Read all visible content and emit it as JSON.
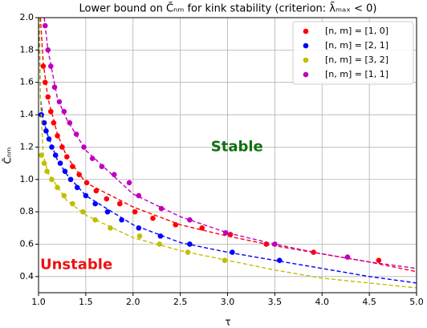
{
  "chart_data": {
    "type": "scatter",
    "title": "Lower bound on C̃ₙₘ for kink stability (criterion: λ̃ₘₐₓ < 0)",
    "xlabel": "τ",
    "ylabel": "C̃ₙₘ",
    "xlim": [
      1.0,
      5.0
    ],
    "ylim": [
      0.3,
      2.0
    ],
    "xticks": [
      {
        "value": 1.0,
        "label": "1.0"
      },
      1.5,
      {
        "value": 2.0,
        "label": "2.0"
      },
      2.5,
      {
        "value": 3.0,
        "label": "3.0"
      },
      3.5,
      {
        "value": 4.0,
        "label": "4.0"
      },
      4.5,
      {
        "value": 5.0,
        "label": "5.0"
      }
    ],
    "yticks": [
      0.4,
      0.6,
      0.8,
      {
        "value": 1.0,
        "label": "1.0"
      },
      1.2,
      1.4,
      1.6,
      1.8,
      {
        "value": 2.0,
        "label": "2.0"
      }
    ],
    "grid": true,
    "legend": "upper right",
    "annotations": [
      {
        "text": "Stable",
        "x": 3.1,
        "y": 1.2,
        "color": "#107010"
      },
      {
        "text": "Unstable",
        "x": 1.4,
        "y": 0.47,
        "color": "#ee1111"
      }
    ],
    "series": [
      {
        "name": "[n, m] = [1, 0]",
        "color": "#ff0000",
        "x": [
          1.05,
          1.07,
          1.1,
          1.13,
          1.16,
          1.2,
          1.25,
          1.3,
          1.36,
          1.43,
          1.51,
          1.61,
          1.72,
          1.86,
          2.02,
          2.21,
          2.45,
          2.73,
          3.03,
          3.41,
          3.91,
          4.6
        ],
        "values": [
          1.7,
          1.6,
          1.51,
          1.42,
          1.35,
          1.27,
          1.2,
          1.14,
          1.08,
          1.03,
          0.98,
          0.93,
          0.88,
          0.85,
          0.8,
          0.76,
          0.72,
          0.7,
          0.66,
          0.6,
          0.55,
          0.5
        ],
        "curve": {
          "x": [
            1.02,
            1.05,
            1.1,
            1.2,
            1.3,
            1.5,
            2.0,
            2.5,
            3.0,
            3.5,
            4.0,
            4.5,
            5.0
          ],
          "values": [
            2.0,
            1.72,
            1.5,
            1.28,
            1.14,
            0.98,
            0.83,
            0.72,
            0.65,
            0.59,
            0.54,
            0.49,
            0.43
          ]
        }
      },
      {
        "name": "[n, m] = [2, 1]",
        "color": "#0000ff",
        "x": [
          1.03,
          1.06,
          1.08,
          1.11,
          1.14,
          1.18,
          1.23,
          1.28,
          1.34,
          1.41,
          1.5,
          1.6,
          1.73,
          1.88,
          2.06,
          2.29,
          2.6,
          3.05,
          3.55
        ],
        "values": [
          1.4,
          1.35,
          1.3,
          1.25,
          1.2,
          1.15,
          1.1,
          1.05,
          1.0,
          0.95,
          0.9,
          0.85,
          0.8,
          0.75,
          0.7,
          0.65,
          0.6,
          0.55,
          0.5
        ],
        "curve": {
          "x": [
            1.005,
            1.02,
            1.05,
            1.1,
            1.2,
            1.3,
            1.5,
            2.0,
            2.5,
            3.0,
            3.5,
            4.0,
            4.5,
            5.0
          ],
          "values": [
            2.0,
            1.5,
            1.37,
            1.27,
            1.12,
            1.03,
            0.9,
            0.72,
            0.61,
            0.55,
            0.5,
            0.45,
            0.4,
            0.36
          ]
        }
      },
      {
        "name": "[n, m] = [3, 2]",
        "color": "#bfbf00",
        "x": [
          1.03,
          1.06,
          1.09,
          1.14,
          1.2,
          1.27,
          1.36,
          1.47,
          1.6,
          1.76,
          2.07,
          2.28,
          2.58,
          2.97
        ],
        "values": [
          1.15,
          1.1,
          1.05,
          1.0,
          0.95,
          0.9,
          0.85,
          0.8,
          0.75,
          0.7,
          0.65,
          0.6,
          0.55,
          0.5
        ],
        "curve": {
          "x": [
            1.01,
            1.02,
            1.05,
            1.1,
            1.3,
            1.5,
            2.0,
            2.5,
            3.0,
            3.5,
            4.0,
            4.5,
            5.0
          ],
          "values": [
            2.0,
            1.5,
            1.15,
            1.04,
            0.87,
            0.78,
            0.64,
            0.56,
            0.5,
            0.44,
            0.39,
            0.36,
            0.33
          ]
        }
      },
      {
        "name": "[n, m] = [1, 1]",
        "color": "#bf00bf",
        "x": [
          1.07,
          1.1,
          1.13,
          1.17,
          1.22,
          1.27,
          1.33,
          1.4,
          1.48,
          1.57,
          1.67,
          1.8,
          1.96,
          2.06,
          2.3,
          2.6,
          2.98,
          3.5,
          4.27
        ],
        "values": [
          1.95,
          1.8,
          1.7,
          1.57,
          1.48,
          1.42,
          1.35,
          1.28,
          1.2,
          1.13,
          1.08,
          1.03,
          0.98,
          0.9,
          0.82,
          0.75,
          0.67,
          0.6,
          0.52
        ],
        "curve": {
          "x": [
            1.06,
            1.1,
            1.2,
            1.3,
            1.5,
            2.0,
            2.5,
            3.0,
            3.5,
            4.0,
            4.5,
            5.0
          ],
          "values": [
            2.0,
            1.8,
            1.5,
            1.37,
            1.18,
            0.91,
            0.77,
            0.67,
            0.6,
            0.54,
            0.49,
            0.45
          ]
        }
      }
    ]
  }
}
